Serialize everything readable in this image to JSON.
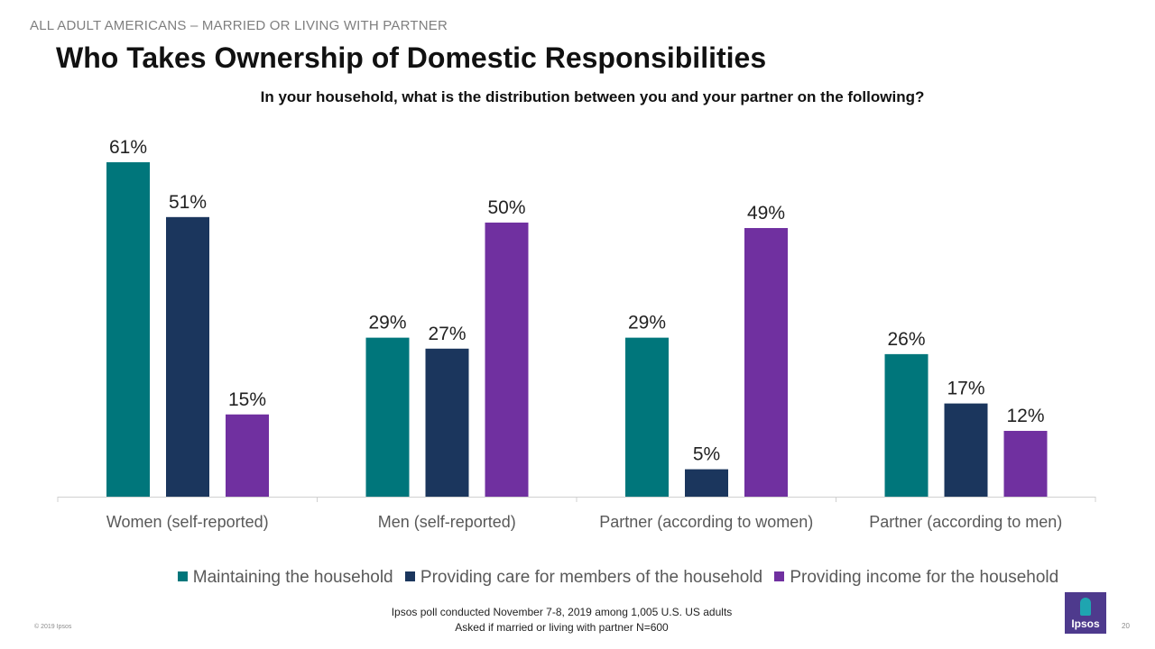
{
  "header": {
    "eyebrow": "ALL ADULT AMERICANS – MARRIED OR LIVING WITH PARTNER",
    "title": "Who Takes Ownership of Domestic Responsibilities",
    "subtitle": "In your household,  what is the distribution  between you and your partner  on the following?"
  },
  "chart_data": {
    "type": "bar",
    "categories": [
      "Women (self-reported)",
      "Men (self-reported)",
      "Partner (according to women)",
      "Partner (according to men)"
    ],
    "series": [
      {
        "name": "Maintaining the household",
        "values": [
          61,
          29,
          29,
          26
        ],
        "labels": [
          "61%",
          "29%",
          "29%",
          "26%"
        ],
        "color": "#00767b"
      },
      {
        "name": "Providing care for members of the household",
        "values": [
          51,
          27,
          5,
          17
        ],
        "labels": [
          "51%",
          "27%",
          "5%",
          "17%"
        ],
        "color": "#1b365d"
      },
      {
        "name": "Providing income for the household",
        "values": [
          15,
          50,
          49,
          12
        ],
        "labels": [
          "15%",
          "50%",
          "49%",
          "12%"
        ],
        "color": "#7030a0"
      }
    ],
    "ylim": [
      0,
      61
    ],
    "grid": false,
    "legend_position": "bottom"
  },
  "footer": {
    "note_line1": "Ipsos poll conducted November 7-8, 2019  among 1,005  U.S. US adults",
    "note_line2": "Asked if married or living with partner N=600",
    "copyright": "© 2019 Ipsos",
    "page_number": "20",
    "logo_text": "Ipsos"
  }
}
